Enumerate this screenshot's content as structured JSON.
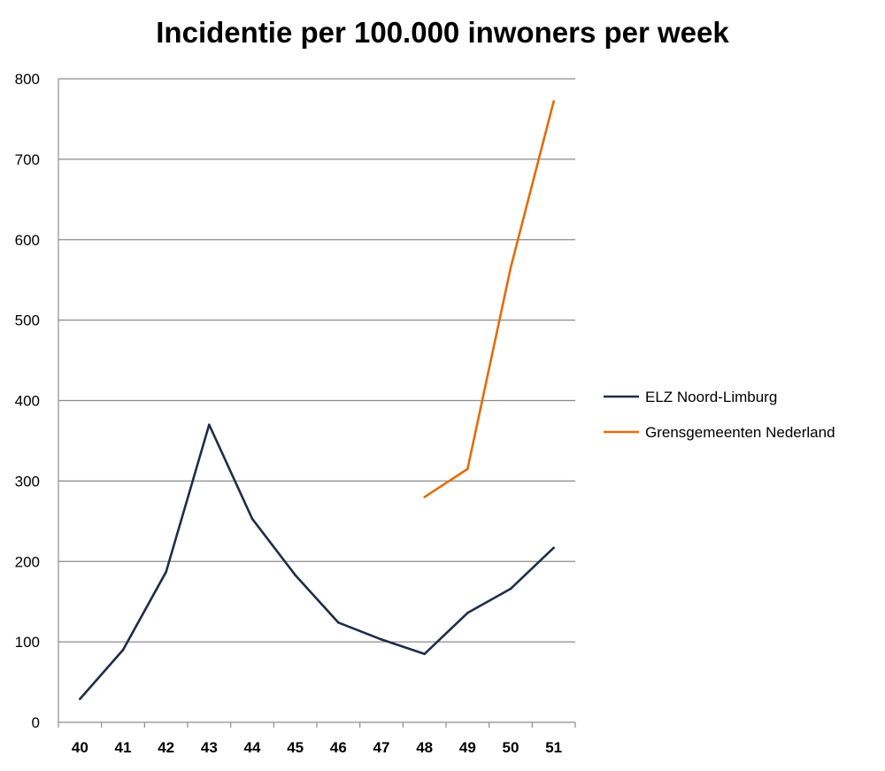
{
  "chart_data": {
    "type": "line",
    "title": "Incidentie per 100.000 inwoners per week",
    "xlabel": "",
    "ylabel": "",
    "categories": [
      "40",
      "41",
      "42",
      "43",
      "44",
      "45",
      "46",
      "47",
      "48",
      "49",
      "50",
      "51"
    ],
    "ylim": [
      0,
      800
    ],
    "yticks": [
      0,
      100,
      200,
      300,
      400,
      500,
      600,
      700,
      800
    ],
    "grid": true,
    "legend_position": "right",
    "series": [
      {
        "name": "ELZ Noord-Limburg",
        "color": "#1f2d4a",
        "values": [
          29,
          90,
          187,
          370,
          253,
          183,
          124,
          103,
          85,
          136,
          166,
          217
        ]
      },
      {
        "name": "Grensgemeenten Nederland",
        "color": "#e36c0a",
        "values": [
          null,
          null,
          null,
          null,
          null,
          null,
          null,
          null,
          280,
          315,
          565,
          772
        ]
      }
    ]
  }
}
